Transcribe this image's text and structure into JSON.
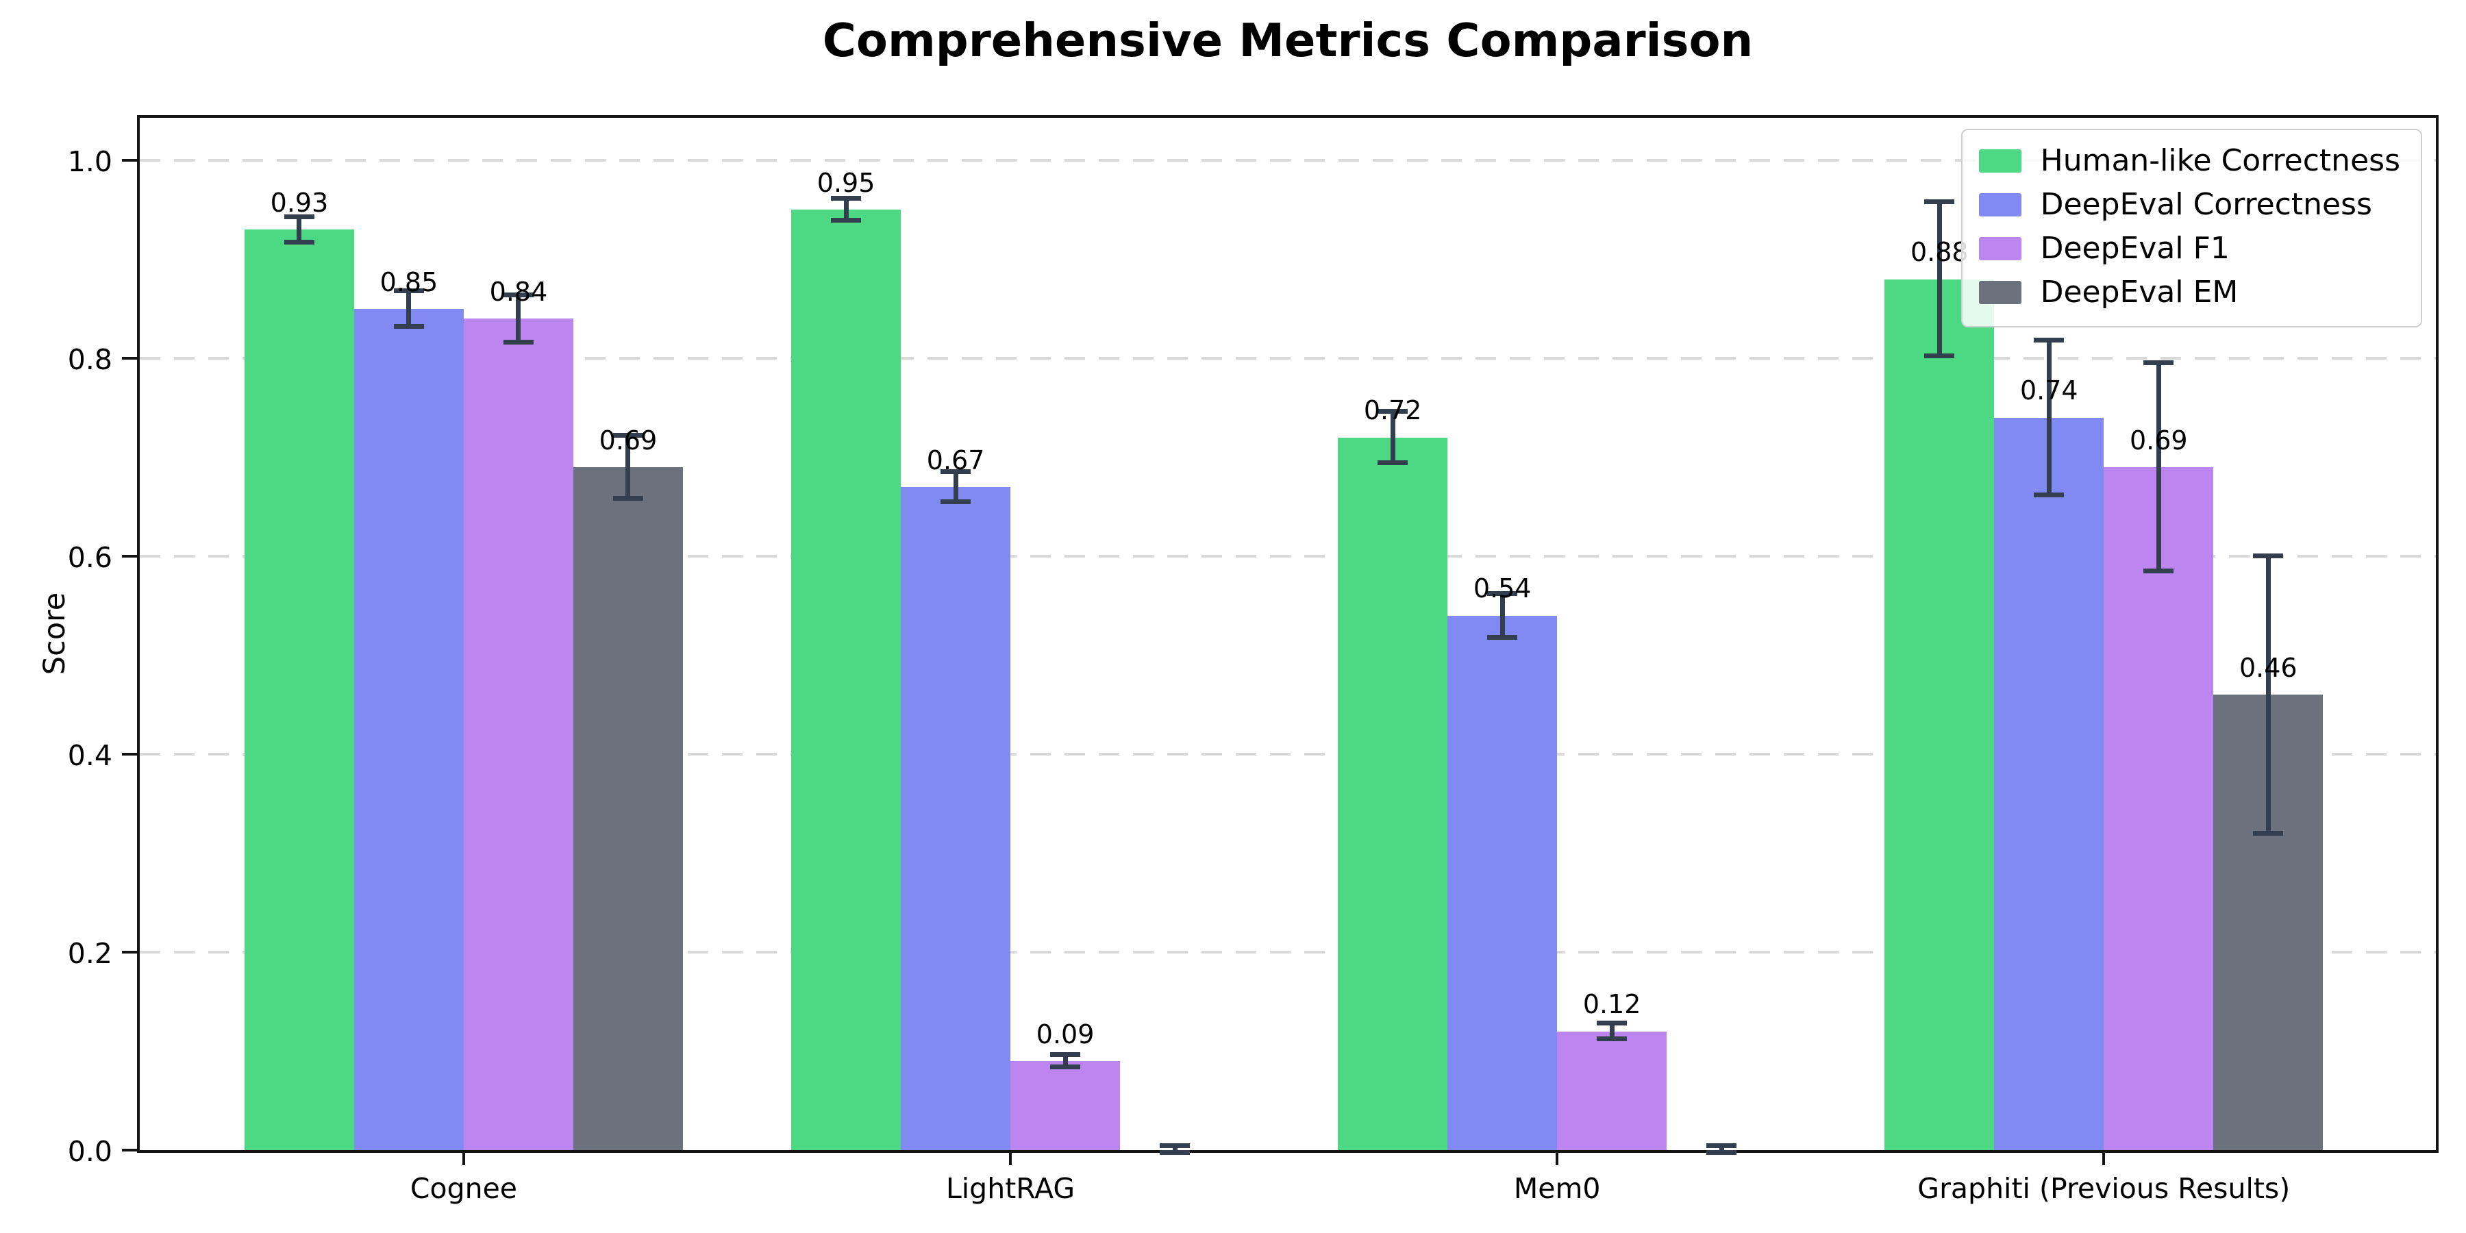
{
  "header": {
    "title": "Comprehensive Metrics Comparison"
  },
  "chart_data": {
    "type": "bar",
    "title": "Comprehensive Metrics Comparison",
    "xlabel": "",
    "ylabel": "Score",
    "categories": [
      "Cognee",
      "LightRAG",
      "Mem0",
      "Graphiti (Previous Results)"
    ],
    "series": [
      {
        "name": "Human-like Correctness",
        "color": "#4dd983",
        "values": [
          0.93,
          0.95,
          0.72,
          0.88
        ],
        "errors": [
          0.013,
          0.011,
          0.026,
          0.078
        ],
        "labels": [
          "0.93",
          "0.95",
          "0.72",
          "0.88"
        ]
      },
      {
        "name": "DeepEval Correctness",
        "color": "#8189f2",
        "values": [
          0.85,
          0.67,
          0.54,
          0.74
        ],
        "errors": [
          0.018,
          0.015,
          0.022,
          0.078
        ],
        "labels": [
          "0.85",
          "0.67",
          "0.54",
          "0.74"
        ]
      },
      {
        "name": "DeepEval F1",
        "color": "#bd85f0",
        "values": [
          0.84,
          0.09,
          0.12,
          0.69
        ],
        "errors": [
          0.024,
          0.006,
          0.008,
          0.105
        ],
        "labels": [
          "0.84",
          "0.09",
          "0.12",
          "0.69"
        ]
      },
      {
        "name": "DeepEval EM",
        "color": "#6b727e",
        "values": [
          0.69,
          0.0,
          0.0,
          0.46
        ],
        "errors": [
          0.032,
          0.004,
          0.004,
          0.14
        ],
        "labels": [
          "0.69",
          "",
          "",
          "0.46"
        ]
      }
    ],
    "ylim": [
      0,
      1.043
    ],
    "yticks": [
      0.0,
      0.2,
      0.4,
      0.6,
      0.8,
      1.0
    ],
    "ytick_labels": [
      "0.0",
      "0.2",
      "0.4",
      "0.6",
      "0.8",
      "1.0"
    ],
    "grid": "horizontal dashed",
    "legend_position": "upper right",
    "style": {
      "error_color": "#333f4f",
      "grid_color": "#d8d8d8",
      "axis_color": "#141414",
      "background": "#ffffff"
    }
  }
}
